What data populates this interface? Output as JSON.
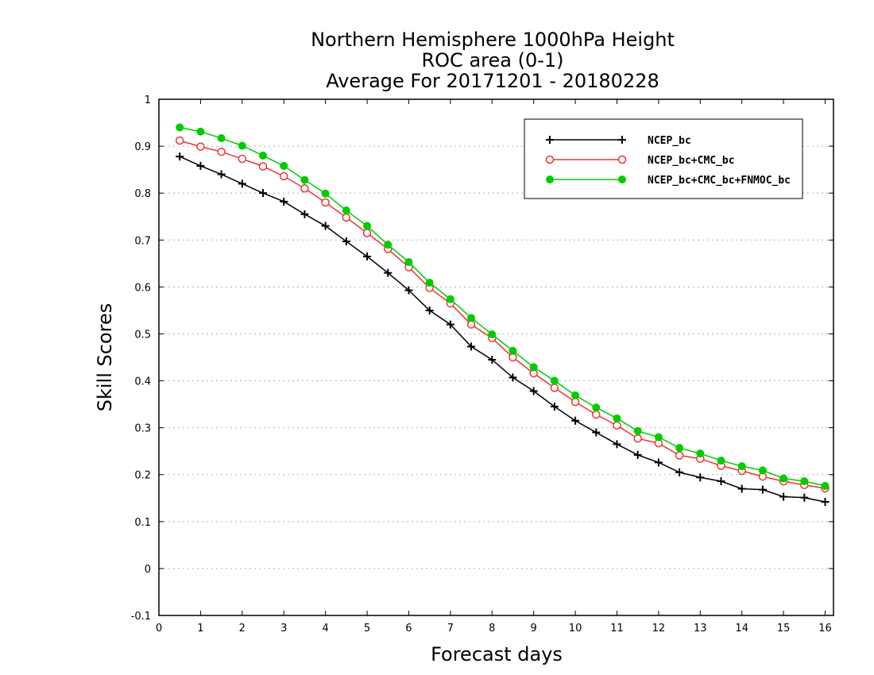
{
  "chart_data": {
    "type": "line",
    "title": [
      "Northern Hemisphere 1000hPa Height",
      "ROC area (0-1)",
      "Average For 20171201 - 20180228"
    ],
    "xlabel": "Forecast days",
    "ylabel": "Skill Scores",
    "xlim": [
      0,
      16.2
    ],
    "ylim": [
      -0.1,
      1
    ],
    "xticks": [
      "0",
      "1",
      "2",
      "3",
      "4",
      "5",
      "6",
      "7",
      "8",
      "9",
      "10",
      "11",
      "12",
      "13",
      "14",
      "15",
      "16"
    ],
    "yticks": [
      "-0.1",
      "0",
      "0.1",
      "0.2",
      "0.3",
      "0.4",
      "0.5",
      "0.6",
      "0.7",
      "0.8",
      "0.9",
      "1"
    ],
    "grid": true,
    "legend_position": "top-right",
    "x": [
      0.5,
      1,
      1.5,
      2,
      2.5,
      3,
      3.5,
      4,
      4.5,
      5,
      5.5,
      6,
      6.5,
      7,
      7.5,
      8,
      8.5,
      9,
      9.5,
      10,
      10.5,
      11,
      11.5,
      12,
      12.5,
      13,
      13.5,
      14,
      14.5,
      15,
      15.5,
      16
    ],
    "series": [
      {
        "name": "NCEP_bc",
        "color": "#000000",
        "marker": "plus",
        "values": [
          0.878,
          0.858,
          0.84,
          0.82,
          0.8,
          0.782,
          0.755,
          0.73,
          0.697,
          0.665,
          0.63,
          0.593,
          0.55,
          0.52,
          0.473,
          0.445,
          0.407,
          0.378,
          0.345,
          0.315,
          0.29,
          0.265,
          0.242,
          0.226,
          0.205,
          0.194,
          0.186,
          0.17,
          0.168,
          0.153,
          0.151,
          0.142
        ]
      },
      {
        "name": "NCEP_bc+CMC_bc",
        "color": "#ee3333",
        "marker": "open-circle",
        "values": [
          0.912,
          0.899,
          0.888,
          0.873,
          0.857,
          0.836,
          0.81,
          0.78,
          0.748,
          0.715,
          0.681,
          0.642,
          0.598,
          0.565,
          0.52,
          0.491,
          0.45,
          0.416,
          0.385,
          0.355,
          0.328,
          0.305,
          0.277,
          0.267,
          0.241,
          0.234,
          0.219,
          0.208,
          0.196,
          0.186,
          0.178,
          0.171
        ]
      },
      {
        "name": "NCEP_bc+CMC_bc+FNMOC_bc",
        "color": "#00cc00",
        "marker": "filled-circle",
        "values": [
          0.94,
          0.931,
          0.917,
          0.901,
          0.88,
          0.858,
          0.828,
          0.799,
          0.763,
          0.73,
          0.69,
          0.653,
          0.609,
          0.574,
          0.534,
          0.499,
          0.464,
          0.429,
          0.4,
          0.369,
          0.343,
          0.32,
          0.293,
          0.28,
          0.257,
          0.245,
          0.23,
          0.218,
          0.209,
          0.192,
          0.186,
          0.176
        ]
      }
    ]
  }
}
